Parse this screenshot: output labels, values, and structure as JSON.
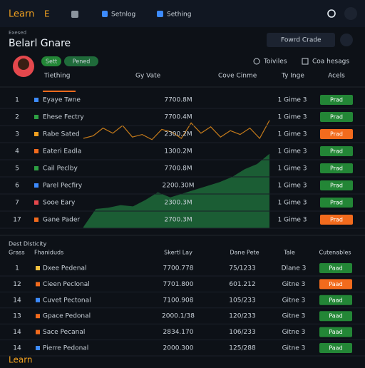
{
  "nav": {
    "brand": "Learn",
    "items": [
      "E",
      "Setnlog",
      "Sething"
    ]
  },
  "header": {
    "eyebrow": "Exesed",
    "title": "Belarl Gnare",
    "button": "Fowrd Crade"
  },
  "profile": {
    "tags": [
      "Sett",
      "Pened"
    ],
    "actions": [
      "Toiviles",
      "Coa hesags"
    ]
  },
  "table1": {
    "columns": [
      "Tiething",
      "Gy Vate",
      "Cove Cinme",
      "Ty Inge",
      "Acels"
    ],
    "rows": [
      {
        "index": "1",
        "name": "Eyaye Twne",
        "color": "#3d8bfd",
        "value": "7700.8M",
        "time": "1 Gime 3",
        "action": "Prad",
        "action_color": "#238636"
      },
      {
        "index": "2",
        "name": "Ehese Fectry",
        "color": "#2ea043",
        "value": "7700.4M",
        "time": "1 Gime 3",
        "action": "Prad",
        "action_color": "#238636"
      },
      {
        "index": "3",
        "name": "Rabe Sated",
        "color": "#f0a020",
        "value": "2300.2M",
        "time": "1 Gime 3",
        "action": "Prad",
        "action_color": "#f26b1d"
      },
      {
        "index": "4",
        "name": "Eateri Eadla",
        "color": "#f26b1d",
        "value": "1300.2M",
        "time": "1 Gime 3",
        "action": "Prad",
        "action_color": "#238636"
      },
      {
        "index": "5",
        "name": "Cail Peclby",
        "color": "#2ea043",
        "value": "7700.8M",
        "time": "1 Gime 3",
        "action": "Prad",
        "action_color": "#238636"
      },
      {
        "index": "6",
        "name": "Parel Pecfiry",
        "color": "#3d8bfd",
        "value": "2200.30M",
        "time": "1 Gime 3",
        "action": "Prad",
        "action_color": "#238636"
      },
      {
        "index": "7",
        "name": "Sooe Eary",
        "color": "#e5484d",
        "value": "2300.3M",
        "time": "1 Gime 3",
        "action": "Prad",
        "action_color": "#238636"
      },
      {
        "index": "17",
        "name": "Gane Pader",
        "color": "#f26b1d",
        "value": "2700.3M",
        "time": "1 Gime 3",
        "action": "Prad",
        "action_color": "#f26b1d"
      }
    ]
  },
  "trend": {
    "ylim": [
      0,
      100
    ],
    "line_color": "#c47a1a",
    "area_color": "#1f6b3a",
    "line": [
      70,
      72,
      78,
      74,
      80,
      71,
      73,
      69,
      77,
      75,
      70,
      82,
      74,
      79,
      71,
      76,
      73,
      78,
      70,
      84
    ],
    "area": [
      1,
      15,
      16,
      18,
      17,
      22,
      28,
      24,
      27,
      30,
      33,
      36,
      40,
      46,
      50,
      58
    ]
  },
  "table2": {
    "title": "Dest Dlsticity",
    "columns": [
      "Grass",
      "Fhaniduds",
      "Skertl Lay",
      "Dane Pete",
      "Tale",
      "Cutenables"
    ],
    "rows": [
      {
        "index": "1",
        "name": "Dxee Pedenal",
        "color": "#f0c040",
        "value": "7700.778",
        "rate": "75/1233",
        "time": "Dlane 3",
        "action": "Paad",
        "action_color": "#238636"
      },
      {
        "index": "12",
        "name": "Cieen Peclonal",
        "color": "#f26b1d",
        "value": "7701.800",
        "rate": "601.212",
        "time": "Gitne 3",
        "action": "Paad",
        "action_color": "#f26b1d"
      },
      {
        "index": "14",
        "name": "Cuvet Pectonal",
        "color": "#3d8bfd",
        "value": "7100.908",
        "rate": "105/233",
        "time": "Gitne 3",
        "action": "Paad",
        "action_color": "#238636"
      },
      {
        "index": "13",
        "name": "Gpace Pedonal",
        "color": "#f26b1d",
        "value": "2000.1/38",
        "rate": "120/233",
        "time": "Gitne 3",
        "action": "Paad",
        "action_color": "#238636"
      },
      {
        "index": "14",
        "name": "Sace Pecanal",
        "color": "#f26b1d",
        "value": "2834.170",
        "rate": "106/233",
        "time": "Gitne 3",
        "action": "Paad",
        "action_color": "#238636"
      },
      {
        "index": "14",
        "name": "Pierre Pedonal",
        "color": "#3d8bfd",
        "value": "2000.300",
        "rate": "125/288",
        "time": "Gitne 3",
        "action": "Paad",
        "action_color": "#238636"
      }
    ]
  },
  "footer": {
    "brand": "Learn"
  }
}
